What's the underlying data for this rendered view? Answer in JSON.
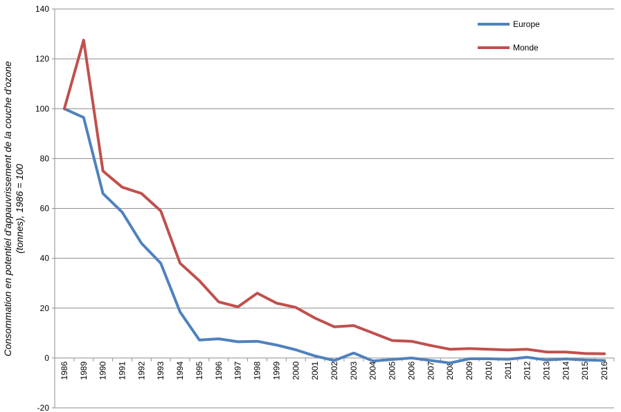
{
  "chart_data": {
    "type": "line",
    "categories": [
      "1986",
      "1989",
      "1990",
      "1991",
      "1992",
      "1993",
      "1994",
      "1995",
      "1996",
      "1997",
      "1998",
      "1999",
      "2000",
      "2001",
      "2002",
      "2003",
      "2004",
      "2005",
      "2006",
      "2007",
      "2008",
      "2009",
      "2010",
      "2011",
      "2012",
      "2013",
      "2014",
      "2015",
      "2016"
    ],
    "series": [
      {
        "name": "Europe",
        "color": "#4F81BD",
        "values": [
          100,
          96.5,
          66,
          58.5,
          46,
          38,
          18.5,
          7.2,
          7.7,
          6.5,
          6.7,
          5.2,
          3.3,
          0.8,
          -1,
          2,
          -1.2,
          -0.6,
          0,
          -1,
          -2,
          -0.3,
          -0.3,
          -0.5,
          0.3,
          -0.8,
          -0.4,
          -0.8,
          -1
        ]
      },
      {
        "name": "Monde",
        "color": "#C0504D",
        "values": [
          100,
          127.5,
          75,
          68.5,
          66,
          59,
          38,
          31,
          22.5,
          20.5,
          26,
          22,
          20.3,
          16,
          12.5,
          13,
          10,
          7,
          6.7,
          5,
          3.5,
          3.8,
          3.5,
          3.2,
          3.5,
          2.4,
          2.4,
          1.8,
          1.7
        ]
      }
    ],
    "ylim": [
      -20,
      140
    ],
    "yticks": [
      "-20",
      "0",
      "20",
      "40",
      "60",
      "80",
      "100",
      "120",
      "140"
    ],
    "ylabel": "Consommation en potentiel d'appauvrissement de la couche d'ozone (tonnes), 1986 = 100",
    "ylabel_lines": [
      "Consommation en potentiel d'appauvrissement de la couche d'ozone",
      "(tonnes),  1986 = 100"
    ],
    "xlabel": "",
    "grid": true,
    "legend_position": "top-right"
  }
}
